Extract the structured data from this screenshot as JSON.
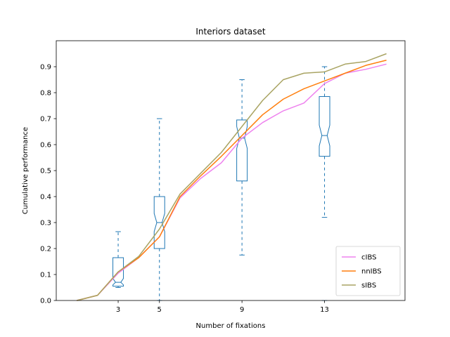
{
  "chart_data": {
    "type": "line",
    "title": "Interiors dataset",
    "xlabel": "Number of fixations",
    "ylabel": "Cumulative performance",
    "xlim": [
      0,
      16.9
    ],
    "ylim": [
      0,
      1.0
    ],
    "xticks": [
      3,
      5,
      9,
      13
    ],
    "yticks": [
      0.0,
      0.1,
      0.2,
      0.3,
      0.4,
      0.5,
      0.6,
      0.7,
      0.8,
      0.9
    ],
    "grid": false,
    "legend_position": "lower-right",
    "x": [
      1,
      2,
      3,
      4,
      5,
      6,
      7,
      8,
      9,
      10,
      11,
      12,
      13,
      14,
      15,
      16
    ],
    "series": [
      {
        "name": "cIBS",
        "color": "#ee82ee",
        "values": [
          0.0,
          0.02,
          0.105,
          0.165,
          0.245,
          0.395,
          0.47,
          0.53,
          0.625,
          0.685,
          0.73,
          0.76,
          0.835,
          0.875,
          0.89,
          0.91
        ]
      },
      {
        "name": "nnIBS",
        "color": "#ff7f0e",
        "values": [
          0.0,
          0.02,
          0.11,
          0.165,
          0.245,
          0.4,
          0.48,
          0.555,
          0.635,
          0.715,
          0.775,
          0.815,
          0.845,
          0.875,
          0.905,
          0.925
        ]
      },
      {
        "name": "sIBS",
        "color": "#a9a463",
        "values": [
          0.0,
          0.02,
          0.11,
          0.17,
          0.275,
          0.41,
          0.49,
          0.57,
          0.67,
          0.77,
          0.85,
          0.875,
          0.88,
          0.91,
          0.92,
          0.95
        ]
      }
    ],
    "boxplots": [
      {
        "x": 3,
        "whisker_low": 0.05,
        "q1": 0.055,
        "median": 0.07,
        "q3": 0.165,
        "whisker_high": 0.265,
        "notch_low": 0.06,
        "notch_high": 0.085,
        "outliers": []
      },
      {
        "x": 5,
        "whisker_low": 0.0,
        "q1": 0.2,
        "median": 0.3,
        "q3": 0.4,
        "whisker_high": 0.7,
        "notch_low": 0.265,
        "notch_high": 0.335,
        "outliers": []
      },
      {
        "x": 9,
        "whisker_low": 0.175,
        "q1": 0.46,
        "median": 0.625,
        "q3": 0.695,
        "whisker_high": 0.85,
        "notch_low": 0.585,
        "notch_high": 0.67,
        "outliers": []
      },
      {
        "x": 13,
        "whisker_low": 0.32,
        "q1": 0.555,
        "median": 0.635,
        "q3": 0.785,
        "whisker_high": 0.9,
        "notch_low": 0.595,
        "notch_high": 0.675,
        "outliers": [
          0.0
        ]
      }
    ],
    "box_color": "#1f77b4"
  }
}
